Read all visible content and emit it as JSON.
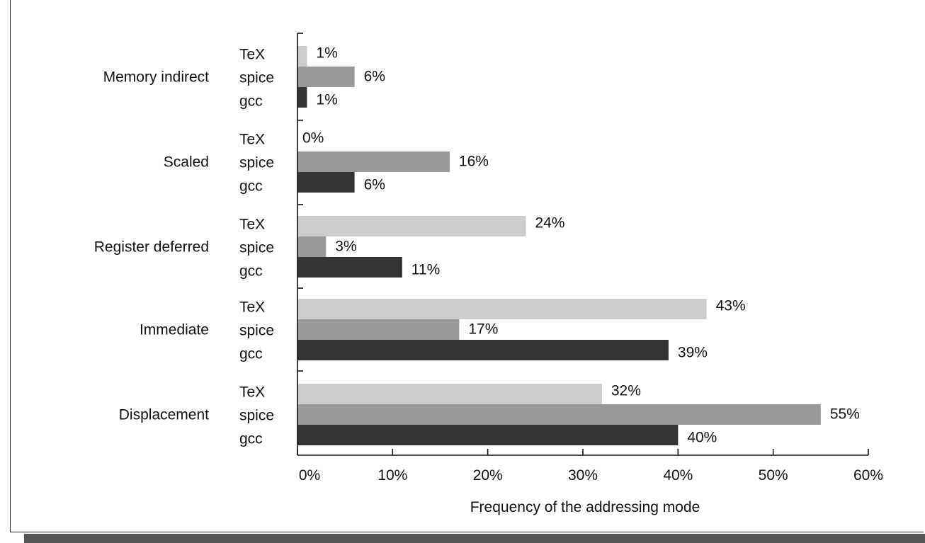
{
  "chart_data": {
    "type": "bar",
    "orientation": "horizontal",
    "title": "",
    "xlabel": "Frequency of the addressing mode",
    "ylabel": "",
    "xlim": [
      0,
      60
    ],
    "x_ticks": [
      "0%",
      "10%",
      "20%",
      "30%",
      "40%",
      "50%",
      "60%"
    ],
    "x_tick_values": [
      0,
      10,
      20,
      30,
      40,
      50,
      60
    ],
    "categories": [
      "Memory indirect",
      "Scaled",
      "Register deferred",
      "Immediate",
      "Displacement"
    ],
    "series": [
      {
        "name": "TeX",
        "color": "#cccccc",
        "values": [
          1,
          0,
          24,
          43,
          32
        ],
        "labels": [
          "1%",
          "0%",
          "24%",
          "43%",
          "32%"
        ]
      },
      {
        "name": "spice",
        "color": "#999999",
        "values": [
          6,
          16,
          3,
          17,
          55
        ],
        "labels": [
          "6%",
          "16%",
          "3%",
          "17%",
          "55%"
        ]
      },
      {
        "name": "gcc",
        "color": "#333333",
        "values": [
          1,
          6,
          11,
          39,
          40
        ],
        "labels": [
          "1%",
          "6%",
          "11%",
          "39%",
          "40%"
        ]
      }
    ],
    "grid": false,
    "legend": "none"
  }
}
